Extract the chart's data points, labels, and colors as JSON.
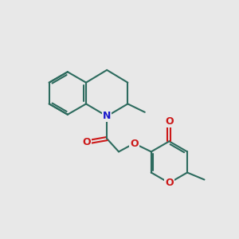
{
  "bg_color": "#e8e8e8",
  "bond_color": "#2d6b5e",
  "n_color": "#1818cc",
  "o_color": "#cc1818",
  "lw": 1.5,
  "fs": 9.0,
  "figsize": [
    3.0,
    3.0
  ],
  "dpi": 100,
  "xlim": [
    0,
    10
  ],
  "ylim": [
    0,
    10
  ]
}
